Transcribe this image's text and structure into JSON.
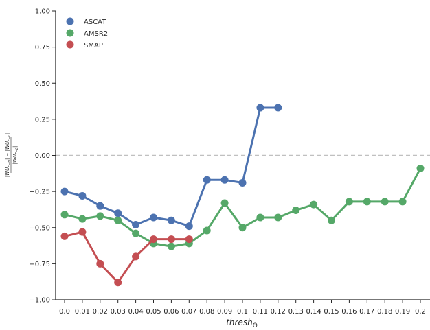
{
  "chart_data": {
    "type": "line",
    "title": "",
    "xlabel": "thresh",
    "xlabel_subscript": "Θ",
    "ylabel": "|WU_{F-N}| - |WU_{F-L}| / |WU_{F-L}|",
    "ylabel_numerator": "|WU",
    "ylabel_denominator": "|WU",
    "categories": [
      "0.0",
      "0.01",
      "0.02",
      "0.03",
      "0.04",
      "0.05",
      "0.06",
      "0.07",
      "0.08",
      "0.09",
      "0.1",
      "0.11",
      "0.12",
      "0.13",
      "0.14",
      "0.15",
      "0.16",
      "0.17",
      "0.18",
      "0.19",
      "0.2"
    ],
    "ylim": [
      -1.0,
      1.0
    ],
    "yticks": [
      "1.00",
      "0.75",
      "0.50",
      "0.25",
      "0.00",
      "−0.25",
      "−0.50",
      "−0.75",
      "−1.00"
    ],
    "ytick_values": [
      1.0,
      0.75,
      0.5,
      0.25,
      0.0,
      -0.25,
      -0.5,
      -0.75,
      -1.0
    ],
    "reference_line": 0.0,
    "grid": false,
    "legend_position": "top-left",
    "series": [
      {
        "name": "ASCAT",
        "color": "#4c72b0",
        "values": [
          -0.25,
          -0.28,
          -0.35,
          -0.4,
          -0.48,
          -0.43,
          -0.45,
          -0.49,
          -0.17,
          -0.17,
          -0.19,
          0.33,
          0.33,
          null,
          null,
          null,
          null,
          null,
          null,
          null,
          null
        ]
      },
      {
        "name": "AMSR2",
        "color": "#55a868",
        "values": [
          -0.41,
          -0.44,
          -0.42,
          -0.45,
          -0.54,
          -0.61,
          -0.63,
          -0.61,
          -0.52,
          -0.33,
          -0.5,
          -0.43,
          -0.43,
          -0.38,
          -0.34,
          -0.45,
          -0.32,
          -0.32,
          -0.32,
          -0.32,
          -0.09
        ]
      },
      {
        "name": "SMAP",
        "color": "#c44e52",
        "values": [
          -0.56,
          -0.53,
          -0.75,
          -0.88,
          -0.7,
          -0.58,
          -0.58,
          -0.58,
          null,
          null,
          null,
          null,
          null,
          null,
          null,
          null,
          null,
          null,
          null,
          null,
          null
        ]
      }
    ]
  }
}
